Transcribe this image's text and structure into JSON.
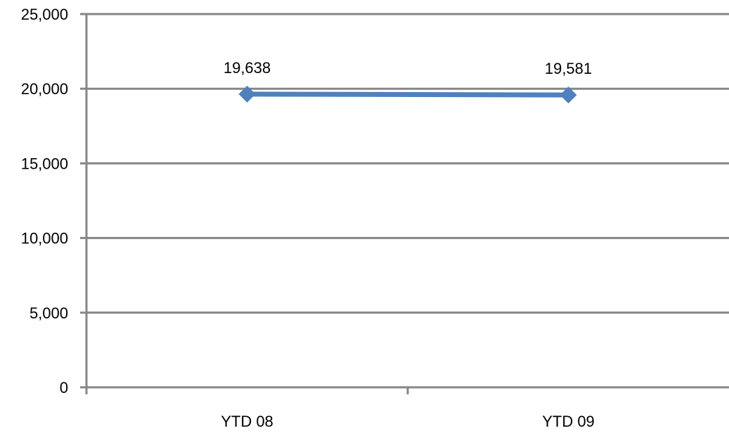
{
  "chart_data": {
    "type": "line",
    "categories": [
      "YTD 08",
      "YTD 09"
    ],
    "series": [
      {
        "values": [
          19638,
          19581
        ]
      }
    ],
    "data_labels": [
      "19,638",
      "19,581"
    ],
    "y_ticks": [
      0,
      5000,
      10000,
      15000,
      20000,
      25000
    ],
    "y_tick_labels": [
      "0",
      "5,000",
      "10,000",
      "15,000",
      "20,000",
      "25,000"
    ],
    "ylim": [
      0,
      25000
    ],
    "grid": true,
    "legend": "none",
    "colors": {
      "series": "#4F81BD",
      "grid": "#868686",
      "axis": "#868686"
    }
  }
}
